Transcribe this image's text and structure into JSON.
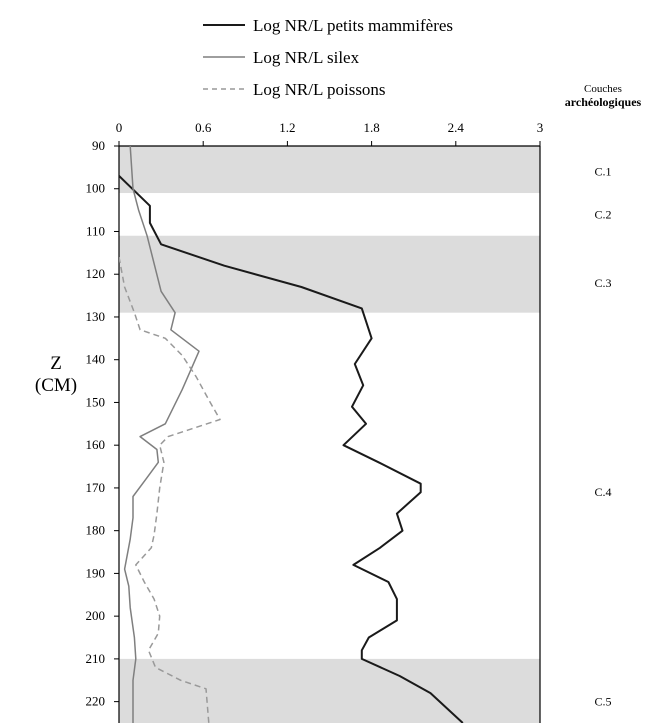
{
  "chart_data": {
    "type": "line",
    "orientation": "depth-profile",
    "y_axis": {
      "label_line1": "Z",
      "label_line2": "(CM)",
      "range": [
        90,
        225
      ],
      "ticks": [
        90,
        100,
        110,
        120,
        130,
        140,
        150,
        160,
        170,
        180,
        190,
        200,
        210,
        220
      ],
      "inverted": true
    },
    "x_axis": {
      "position": "top",
      "range": [
        0,
        3
      ],
      "ticks": [
        "0",
        "0.6",
        "1.2",
        "1.8",
        "2.4",
        "3"
      ]
    },
    "layers_header": {
      "line1": "Couches",
      "line2": "archéologiques"
    },
    "layers": [
      {
        "label": "C.1",
        "from": 90,
        "to": 101,
        "shaded": true,
        "label_at": 96
      },
      {
        "label": "C.2",
        "from": 101,
        "to": 111,
        "shaded": false,
        "label_at": 106
      },
      {
        "label": "C.3",
        "from": 111,
        "to": 129,
        "shaded": true,
        "label_at": 122
      },
      {
        "label": "C.4",
        "from": 129,
        "to": 210,
        "shaded": false,
        "label_at": 171
      },
      {
        "label": "C.5",
        "from": 210,
        "to": 225,
        "shaded": true,
        "label_at": 220
      }
    ],
    "series": [
      {
        "name": "Log NR/L petits mammifères",
        "color": "#1a1a1a",
        "style": "solid",
        "points": [
          [
            0,
            97
          ],
          [
            0.22,
            104
          ],
          [
            0.22,
            108
          ],
          [
            0.3,
            113
          ],
          [
            0.75,
            118
          ],
          [
            1.3,
            123
          ],
          [
            1.73,
            128
          ],
          [
            1.76,
            131
          ],
          [
            1.8,
            135
          ],
          [
            1.68,
            141
          ],
          [
            1.74,
            146
          ],
          [
            1.66,
            151
          ],
          [
            1.76,
            155
          ],
          [
            1.6,
            160
          ],
          [
            1.85,
            164
          ],
          [
            2.15,
            169
          ],
          [
            2.15,
            171
          ],
          [
            1.98,
            176
          ],
          [
            2.02,
            180
          ],
          [
            1.86,
            184
          ],
          [
            1.67,
            188
          ],
          [
            1.92,
            192
          ],
          [
            1.98,
            196
          ],
          [
            1.98,
            201
          ],
          [
            1.78,
            205
          ],
          [
            1.73,
            208
          ],
          [
            1.73,
            210
          ],
          [
            2.0,
            214
          ],
          [
            2.22,
            218
          ],
          [
            2.45,
            225
          ]
        ]
      },
      {
        "name": "Log NR/L silex",
        "color": "#7f7f7f",
        "style": "solid",
        "points": [
          [
            0.08,
            90
          ],
          [
            0.1,
            100
          ],
          [
            0.14,
            105
          ],
          [
            0.2,
            111
          ],
          [
            0.3,
            124
          ],
          [
            0.4,
            129
          ],
          [
            0.37,
            133
          ],
          [
            0.57,
            138
          ],
          [
            0.45,
            147
          ],
          [
            0.33,
            155
          ],
          [
            0.15,
            158
          ],
          [
            0.27,
            161
          ],
          [
            0.28,
            164
          ],
          [
            0.19,
            168
          ],
          [
            0.1,
            172
          ],
          [
            0.1,
            177
          ],
          [
            0.08,
            182
          ],
          [
            0.04,
            189
          ],
          [
            0.07,
            193
          ],
          [
            0.08,
            198
          ],
          [
            0.11,
            205
          ],
          [
            0.12,
            210
          ],
          [
            0.1,
            215
          ],
          [
            0.1,
            225
          ]
        ]
      },
      {
        "name": "Log NR/L poissons",
        "color": "#999999",
        "style": "dashed",
        "points": [
          [
            0,
            116
          ],
          [
            0.04,
            123
          ],
          [
            0.11,
            129
          ],
          [
            0.15,
            133
          ],
          [
            0.33,
            135
          ],
          [
            0.45,
            139
          ],
          [
            0.55,
            144
          ],
          [
            0.65,
            150
          ],
          [
            0.72,
            154
          ],
          [
            0.35,
            158
          ],
          [
            0.29,
            160
          ],
          [
            0.32,
            164
          ],
          [
            0.29,
            170
          ],
          [
            0.27,
            176
          ],
          [
            0.25,
            181
          ],
          [
            0.23,
            184
          ],
          [
            0.12,
            188
          ],
          [
            0.18,
            192
          ],
          [
            0.25,
            196
          ],
          [
            0.29,
            200
          ],
          [
            0.28,
            204
          ],
          [
            0.21,
            208
          ],
          [
            0.26,
            212
          ],
          [
            0.44,
            215
          ],
          [
            0.62,
            217
          ],
          [
            0.64,
            225
          ]
        ]
      }
    ]
  }
}
